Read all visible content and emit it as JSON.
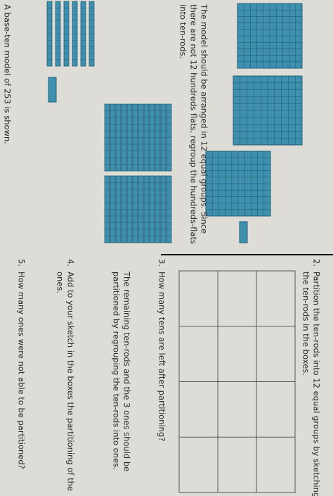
{
  "left": {
    "prompt": "A base-ten model of 253 is shown.",
    "note_lines": [
      "The model should be arranged in 12 equal groups. Since",
      "there are not 12 hundreds flats, regroup the hundreds-flats",
      "into ten-rods."
    ]
  },
  "questions": [
    {
      "number": "2.",
      "lines": [
        "Partition the ten-rods into 12 equal groups by sketching",
        "the ten-rods in the boxes."
      ]
    },
    {
      "number": "3.",
      "lines": [
        "How many tens are left after partitioning?"
      ]
    },
    {
      "number": "4.",
      "lines": [
        "Add to your sketch in the boxes the partitioning of the",
        "ones."
      ]
    },
    {
      "number": "5.",
      "lines": [
        "How many ones were not able to be partitioned?"
      ]
    }
  ],
  "note_3_lines": [
    "The remaining ten-rods and the 3 ones should be",
    "partitioned by regrouping the ten-rods into ones."
  ]
}
